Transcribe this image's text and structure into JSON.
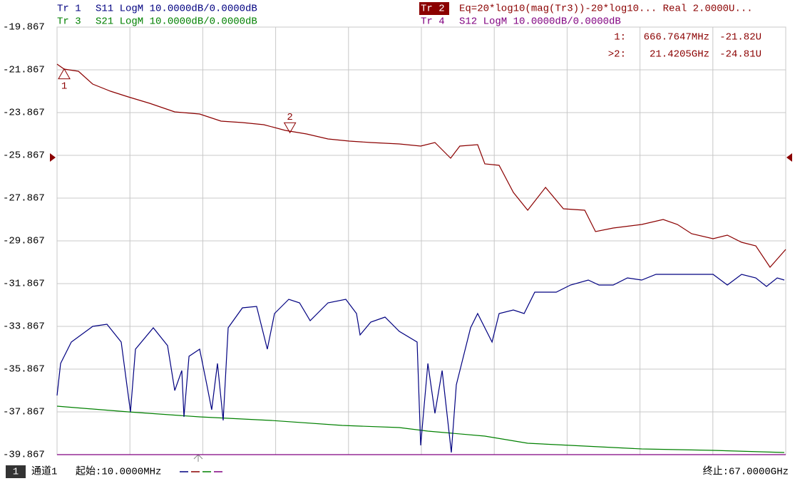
{
  "chart_data": {
    "type": "line",
    "xlim": [
      0.01,
      67
    ],
    "ylim": [
      -39.867,
      -19.867
    ],
    "yticks": [
      -19.867,
      -21.867,
      -23.867,
      -25.867,
      -27.867,
      -29.867,
      -31.867,
      -33.867,
      -35.867,
      -37.867,
      -39.867
    ],
    "grid": true,
    "series": [
      {
        "name": "Tr 1",
        "label": "S11 LogM 10.0000dB/0.0000dB",
        "color": "#000080",
        "x": [
          0.01,
          0.34,
          1.32,
          3.29,
          4.6,
          5.91,
          6.43,
          6.76,
          7.22,
          8.86,
          10.17,
          10.83,
          11.48,
          11.68,
          12.14,
          13.12,
          13.78,
          14.23,
          14.76,
          15.28,
          15.74,
          17.05,
          18.36,
          19.34,
          20.0,
          21.31,
          22.3,
          23.28,
          24.92,
          26.56,
          27.54,
          27.87,
          28.85,
          30.16,
          31.47,
          33.11,
          33.44,
          34.1,
          34.75,
          35.41,
          36.26,
          36.72,
          38.03,
          38.68,
          40.0,
          40.65,
          41.96,
          42.95,
          43.93,
          45.9,
          47.21,
          48.85,
          49.83,
          51.14,
          52.45,
          53.76,
          55.07,
          57.7,
          60.32,
          61.63,
          62.94,
          64.25,
          65.23,
          66.22,
          66.87
        ],
        "values": [
          -37.1,
          -35.6,
          -34.6,
          -33.867,
          -33.767,
          -34.6,
          -36.6,
          -37.867,
          -34.934,
          -33.934,
          -34.767,
          -36.867,
          -35.934,
          -38.1,
          -35.267,
          -34.934,
          -36.6,
          -37.767,
          -35.6,
          -38.267,
          -33.934,
          -33.0,
          -32.934,
          -34.934,
          -33.267,
          -32.6,
          -32.767,
          -33.6,
          -32.767,
          -32.6,
          -33.267,
          -34.267,
          -33.667,
          -33.434,
          -34.1,
          -34.6,
          -39.434,
          -35.6,
          -37.934,
          -35.934,
          -39.767,
          -36.6,
          -33.934,
          -33.267,
          -34.6,
          -33.267,
          -33.1,
          -33.267,
          -32.267,
          -32.267,
          -31.934,
          -31.7,
          -31.934,
          -31.934,
          -31.6,
          -31.7,
          -31.434,
          -31.434,
          -31.434,
          -31.934,
          -31.434,
          -31.6,
          -32.0,
          -31.6,
          -31.7
        ]
      },
      {
        "name": "Tr 2",
        "label": "Eq=20*log10(mag(Tr3))-20*log10... Real 2.0000U...",
        "color": "#8b0000",
        "x": [
          0.01,
          0.666,
          1.977,
          3.288,
          4.926,
          6.565,
          8.532,
          10.826,
          13.12,
          15.09,
          17.05,
          19.02,
          20.99,
          22.95,
          24.92,
          26.88,
          28.85,
          31.47,
          33.44,
          34.75,
          36.19,
          37.04,
          38.68,
          39.34,
          40.65,
          41.96,
          43.28,
          44.92,
          46.56,
          48.52,
          49.51,
          51.14,
          53.76,
          55.73,
          57.04,
          58.35,
          60.32,
          61.63,
          62.94,
          64.25,
          65.56,
          67
        ],
        "values": [
          -21.6,
          -21.834,
          -21.934,
          -22.534,
          -22.867,
          -23.134,
          -23.434,
          -23.834,
          -23.934,
          -24.267,
          -24.334,
          -24.434,
          -24.7,
          -24.867,
          -25.1,
          -25.2,
          -25.267,
          -25.334,
          -25.434,
          -25.267,
          -26.0,
          -25.434,
          -25.367,
          -26.267,
          -26.334,
          -27.6,
          -28.434,
          -27.367,
          -28.367,
          -28.434,
          -29.434,
          -29.267,
          -29.1,
          -28.867,
          -29.1,
          -29.534,
          -29.767,
          -29.6,
          -29.934,
          -30.1,
          -31.1,
          -30.267
        ]
      },
      {
        "name": "Tr 3",
        "label": "S21 LogM 10.0000dB/0.0000dB",
        "color": "#008000",
        "x": [
          0.01,
          6.565,
          13.12,
          19.67,
          26.23,
          31.47,
          34.1,
          39.34,
          43.28,
          47.21,
          53.76,
          60.32,
          66.87
        ],
        "values": [
          -37.6,
          -37.867,
          -38.1,
          -38.267,
          -38.5,
          -38.6,
          -38.767,
          -39.0,
          -39.334,
          -39.434,
          -39.6,
          -39.667,
          -39.767
        ]
      },
      {
        "name": "Tr 4",
        "label": "S12 LogM 10.0000dB/0.0000dB",
        "color": "#800080",
        "x": [
          0.01,
          67
        ],
        "values": [
          -39.867,
          -39.867
        ]
      }
    ],
    "markers": [
      {
        "name": "1",
        "readout": "1:",
        "x": 0.6667647,
        "x_label": "666.7647MHz",
        "y": -21.82,
        "y_label": "-21.82U"
      },
      {
        "name": "2",
        "readout": ">2:",
        "x": 21.4205,
        "x_label": "21.4205GHz",
        "y": -24.81,
        "y_label": "-24.81U"
      }
    ],
    "footer": {
      "channel_no": "1",
      "channel": "通道1",
      "start": "起始:10.0000MHz",
      "stop": "终止:67.0000GHz"
    }
  }
}
